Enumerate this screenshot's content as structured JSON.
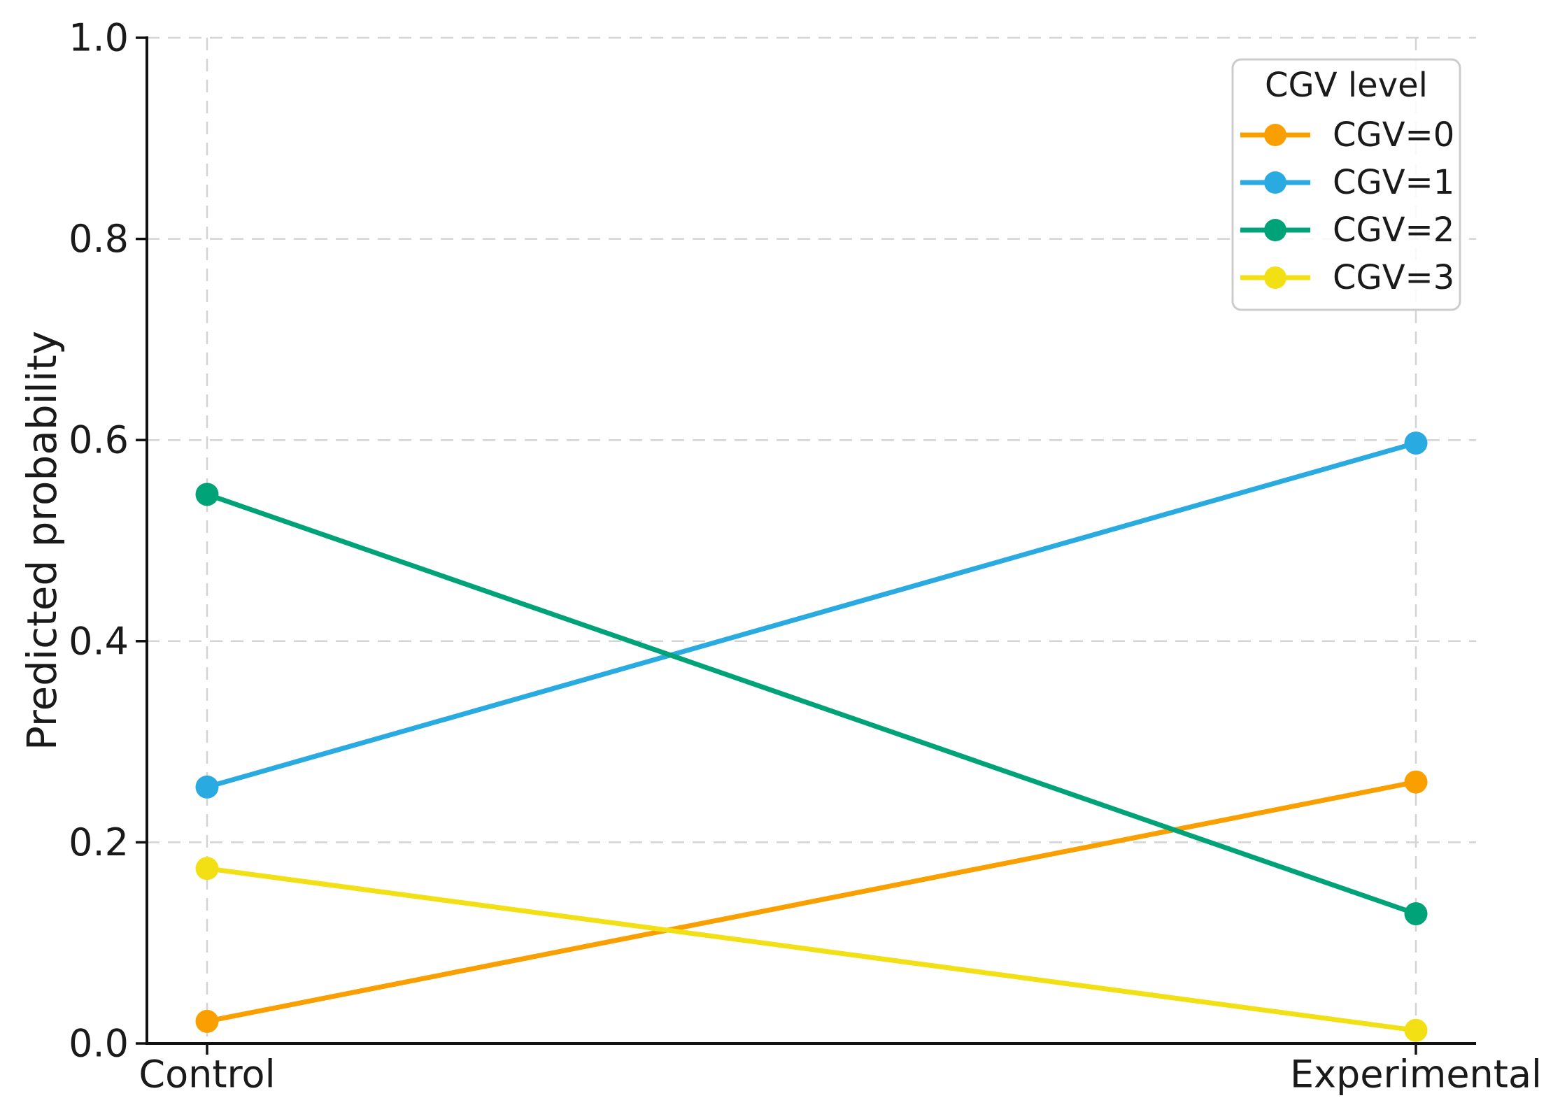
{
  "chart_data": {
    "type": "line",
    "title": "",
    "xlabel": "",
    "ylabel": "Predicted probability",
    "categories": [
      "Control",
      "Experimental"
    ],
    "series": [
      {
        "name": "CGV=0",
        "color": "#F9A000",
        "values": [
          0.022,
          0.26
        ]
      },
      {
        "name": "CGV=1",
        "color": "#29ABE2",
        "values": [
          0.255,
          0.597
        ]
      },
      {
        "name": "CGV=2",
        "color": "#00A377",
        "values": [
          0.546,
          0.129
        ]
      },
      {
        "name": "CGV=3",
        "color": "#F2E015",
        "values": [
          0.174,
          0.013
        ]
      }
    ],
    "legend_title": "CGV level",
    "legend_position": "upper right",
    "ylim": [
      0.0,
      1.0
    ],
    "yticks": [
      "0.0",
      "0.2",
      "0.4",
      "0.6",
      "0.8",
      "1.0"
    ],
    "grid": "dashed horizontal lines at y ticks, dashed vertical lines at category positions",
    "marker": "circle",
    "colors": {
      "grid": "#D4D4D4",
      "axis": "#111111",
      "text": "#1A1A1A",
      "legend_border": "#CCCCCC",
      "background": "#FFFFFF"
    }
  }
}
